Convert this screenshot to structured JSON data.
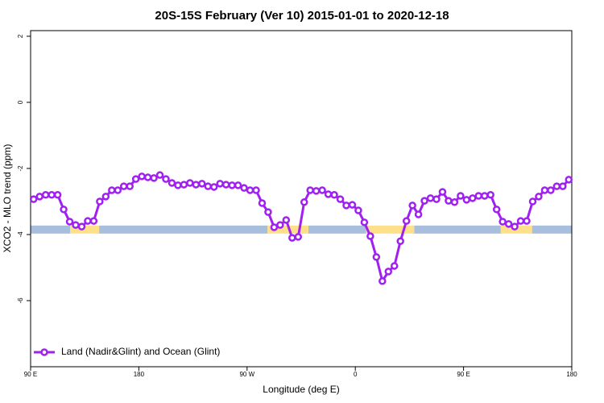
{
  "chart_data": {
    "type": "line",
    "title": "20S-15S February (Ver 10)   2015-01-01 to 2020-12-18",
    "x_label": "Longitude (deg E)",
    "y_label": "XCO2 - MLO trend (ppm)",
    "xlim": [
      90,
      540
    ],
    "ylim": [
      -8,
      2.17
    ],
    "xticks": [
      {
        "value": 90,
        "label": "90 E"
      },
      180,
      {
        "value": 270,
        "label": "90 W"
      },
      {
        "value": 360,
        "label": "0"
      },
      {
        "value": 450,
        "label": "90 E"
      },
      {
        "value": 540,
        "label": "180"
      }
    ],
    "yticks": [
      -6,
      -4,
      -2,
      0,
      2
    ],
    "legend": "bottom-left",
    "x": [
      92.5,
      97.5,
      102.5,
      107.5,
      112.5,
      117.5,
      122.5,
      127.5,
      132.5,
      137.5,
      142.5,
      147.5,
      152.5,
      157.5,
      162.5,
      167.5,
      172.5,
      177.5,
      182.5,
      187.5,
      192.5,
      197.5,
      202.5,
      207.5,
      212.5,
      217.5,
      222.5,
      227.5,
      232.5,
      237.5,
      242.5,
      247.5,
      252.5,
      257.5,
      262.5,
      267.5,
      272.5,
      277.5,
      282.5,
      287.5,
      292.5,
      297.5,
      302.5,
      307.5,
      312.5,
      317.5,
      322.5,
      327.5,
      332.5,
      337.5,
      342.5,
      347.5,
      352.5,
      357.5,
      362.5,
      367.5,
      372.5,
      377.5,
      382.5,
      387.5,
      392.5,
      397.5,
      402.5,
      407.5,
      412.5,
      417.5,
      422.5,
      427.5,
      432.5,
      437.5,
      442.5,
      447.5,
      452.5,
      457.5,
      462.5,
      467.5,
      472.5,
      477.5,
      482.5,
      487.5,
      492.5,
      497.5,
      502.5,
      507.5,
      512.5,
      517.5,
      522.5,
      527.5,
      532.5,
      537.5
    ],
    "series": [
      {
        "name": "Land (Nadir&Glint) and Ocean (Glint)",
        "color": "#a020f0",
        "values": [
          -2.93,
          -2.85,
          -2.8,
          -2.8,
          -2.8,
          -3.24,
          -3.61,
          -3.71,
          -3.76,
          -3.59,
          -3.59,
          -3.0,
          -2.85,
          -2.66,
          -2.66,
          -2.54,
          -2.54,
          -2.32,
          -2.24,
          -2.27,
          -2.29,
          -2.2,
          -2.32,
          -2.44,
          -2.51,
          -2.49,
          -2.44,
          -2.49,
          -2.46,
          -2.54,
          -2.56,
          -2.46,
          -2.49,
          -2.51,
          -2.51,
          -2.59,
          -2.66,
          -2.66,
          -3.05,
          -3.32,
          -3.78,
          -3.71,
          -3.56,
          -4.1,
          -4.07,
          -3.02,
          -2.66,
          -2.68,
          -2.66,
          -2.78,
          -2.8,
          -2.93,
          -3.12,
          -3.1,
          -3.27,
          -3.63,
          -4.05,
          -4.68,
          -5.41,
          -5.12,
          -4.95,
          -4.2,
          -3.59,
          -3.12,
          -3.39,
          -2.98,
          -2.9,
          -2.93,
          -2.71,
          -2.98,
          -3.02,
          -2.83,
          -2.95,
          -2.9,
          -2.83,
          -2.83,
          -2.8,
          -3.24,
          -3.61,
          -3.68,
          -3.76,
          -3.59,
          -3.59,
          -3.0,
          -2.85,
          -2.66,
          -2.66,
          -2.54,
          -2.54,
          -2.34
        ]
      }
    ],
    "surface_band": {
      "value": -3.85,
      "segments": [
        {
          "start": 90,
          "end": 123,
          "color": "#a8bedd"
        },
        {
          "start": 123,
          "end": 147,
          "color": "#ffe08a"
        },
        {
          "start": 147,
          "end": 287,
          "color": "#a8bedd"
        },
        {
          "start": 287,
          "end": 321,
          "color": "#ffe08a"
        },
        {
          "start": 321,
          "end": 369,
          "color": "#a8bedd"
        },
        {
          "start": 369,
          "end": 409,
          "color": "#ffe08a"
        },
        {
          "start": 409,
          "end": 481,
          "color": "#a8bedd"
        },
        {
          "start": 481,
          "end": 507,
          "color": "#ffe08a"
        },
        {
          "start": 507,
          "end": 540,
          "color": "#a8bedd"
        }
      ]
    }
  }
}
